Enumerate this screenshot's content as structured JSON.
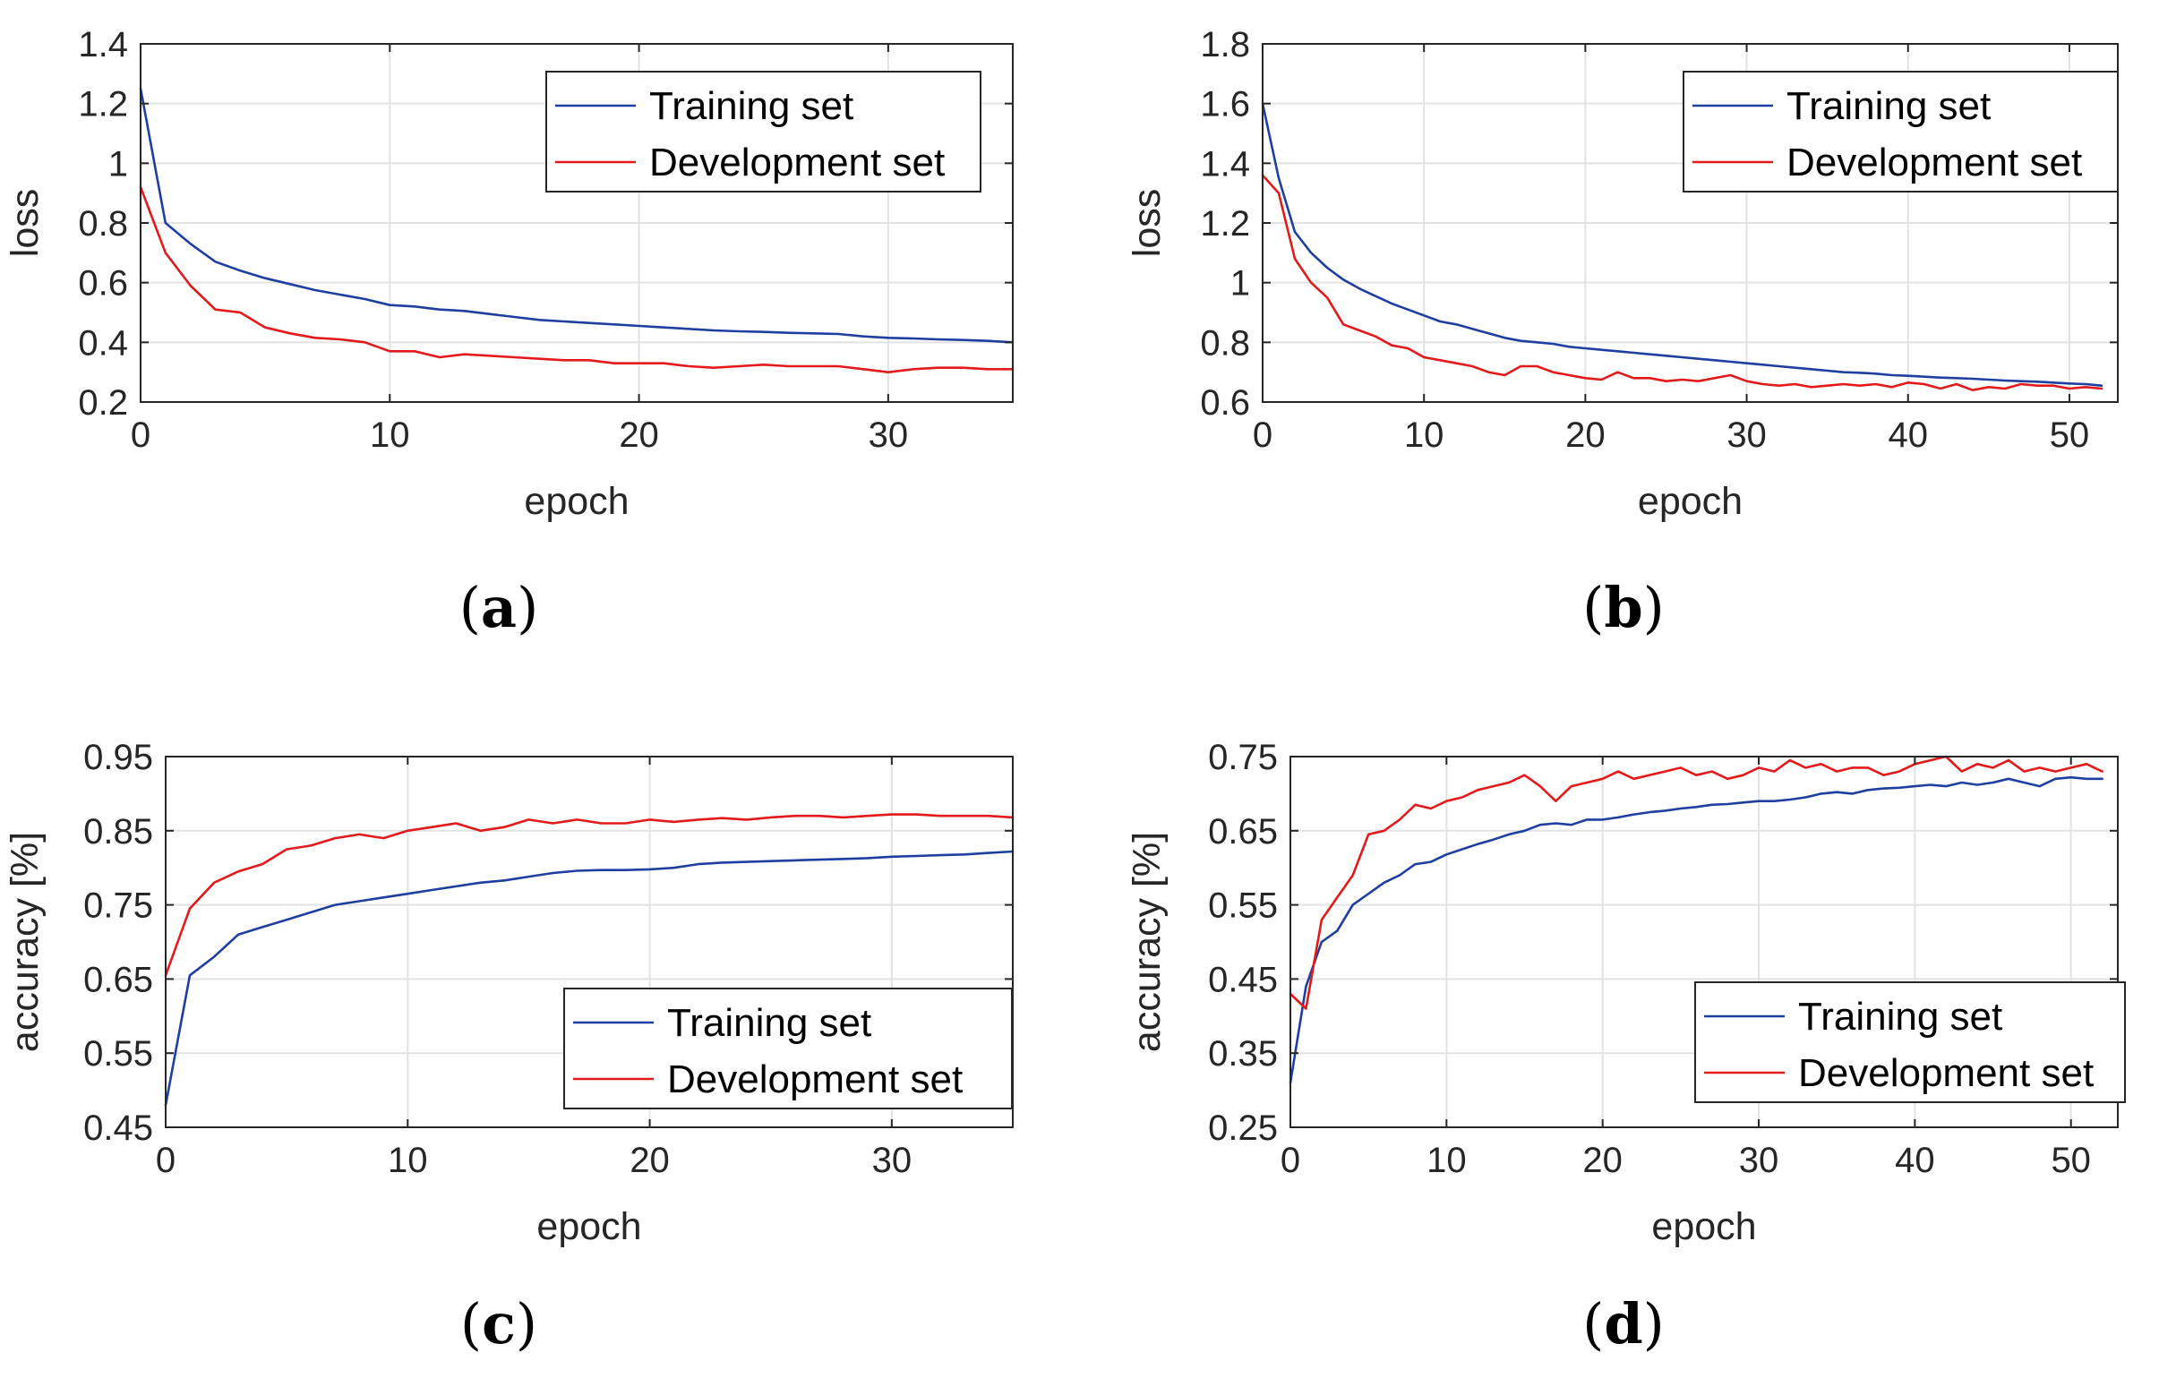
{
  "chart_data": [
    {
      "type": "line",
      "panel_label": "a",
      "xlabel": "epoch",
      "ylabel": "loss",
      "xlim": [
        0,
        35
      ],
      "ylim": [
        0.2,
        1.4
      ],
      "xticks": [
        "0",
        "10",
        "20",
        "30"
      ],
      "yticks": [
        "0.2",
        "0.4",
        "0.6",
        "0.8",
        "1",
        "1.2",
        "1.4"
      ],
      "grid": true,
      "legend_placement": "top-right",
      "series": [
        {
          "name": "Training set",
          "color": "#1f3fa0",
          "x": [
            0,
            1,
            2,
            3,
            4,
            5,
            6,
            7,
            8,
            9,
            10,
            11,
            12,
            13,
            14,
            15,
            16,
            17,
            18,
            19,
            20,
            21,
            22,
            23,
            24,
            25,
            26,
            27,
            28,
            29,
            30,
            31,
            32,
            33,
            34,
            35
          ],
          "values": [
            1.25,
            0.8,
            0.73,
            0.67,
            0.64,
            0.615,
            0.595,
            0.575,
            0.56,
            0.545,
            0.525,
            0.52,
            0.51,
            0.505,
            0.495,
            0.485,
            0.475,
            0.47,
            0.465,
            0.46,
            0.455,
            0.45,
            0.445,
            0.44,
            0.437,
            0.435,
            0.432,
            0.43,
            0.428,
            0.42,
            0.415,
            0.413,
            0.41,
            0.408,
            0.405,
            0.4
          ]
        },
        {
          "name": "Development set",
          "color": "#e31a1c",
          "x": [
            0,
            1,
            2,
            3,
            4,
            5,
            6,
            7,
            8,
            9,
            10,
            11,
            12,
            13,
            14,
            15,
            16,
            17,
            18,
            19,
            20,
            21,
            22,
            23,
            24,
            25,
            26,
            27,
            28,
            29,
            30,
            31,
            32,
            33,
            34,
            35
          ],
          "values": [
            0.92,
            0.7,
            0.59,
            0.51,
            0.5,
            0.45,
            0.43,
            0.415,
            0.41,
            0.4,
            0.37,
            0.37,
            0.35,
            0.36,
            0.355,
            0.35,
            0.345,
            0.34,
            0.34,
            0.33,
            0.33,
            0.33,
            0.32,
            0.315,
            0.32,
            0.325,
            0.32,
            0.32,
            0.32,
            0.31,
            0.3,
            0.31,
            0.315,
            0.315,
            0.31,
            0.31
          ]
        }
      ]
    },
    {
      "type": "line",
      "panel_label": "b",
      "xlabel": "epoch",
      "ylabel": "loss",
      "xlim": [
        0,
        53
      ],
      "ylim": [
        0.6,
        1.8
      ],
      "xticks": [
        "0",
        "10",
        "20",
        "30",
        "40",
        "50"
      ],
      "yticks": [
        "0.6",
        "0.8",
        "1",
        "1.2",
        "1.4",
        "1.6",
        "1.8"
      ],
      "grid": true,
      "legend_placement": "top-right",
      "series": [
        {
          "name": "Training set",
          "color": "#1f3fa0",
          "x": [
            0,
            1,
            2,
            3,
            4,
            5,
            6,
            7,
            8,
            9,
            10,
            11,
            12,
            13,
            14,
            15,
            16,
            17,
            18,
            19,
            20,
            21,
            22,
            23,
            24,
            25,
            26,
            27,
            28,
            29,
            30,
            31,
            32,
            33,
            34,
            35,
            36,
            37,
            38,
            39,
            40,
            41,
            42,
            43,
            44,
            45,
            46,
            47,
            48,
            49,
            50,
            51,
            52
          ],
          "values": [
            1.6,
            1.35,
            1.17,
            1.1,
            1.05,
            1.01,
            0.98,
            0.955,
            0.93,
            0.91,
            0.89,
            0.87,
            0.86,
            0.845,
            0.83,
            0.815,
            0.805,
            0.8,
            0.795,
            0.785,
            0.78,
            0.775,
            0.77,
            0.765,
            0.76,
            0.755,
            0.75,
            0.745,
            0.74,
            0.735,
            0.73,
            0.725,
            0.72,
            0.715,
            0.71,
            0.705,
            0.7,
            0.698,
            0.695,
            0.69,
            0.688,
            0.685,
            0.682,
            0.68,
            0.678,
            0.675,
            0.672,
            0.67,
            0.668,
            0.665,
            0.662,
            0.66,
            0.655
          ]
        },
        {
          "name": "Development set",
          "color": "#e31a1c",
          "x": [
            0,
            1,
            2,
            3,
            4,
            5,
            6,
            7,
            8,
            9,
            10,
            11,
            12,
            13,
            14,
            15,
            16,
            17,
            18,
            19,
            20,
            21,
            22,
            23,
            24,
            25,
            26,
            27,
            28,
            29,
            30,
            31,
            32,
            33,
            34,
            35,
            36,
            37,
            38,
            39,
            40,
            41,
            42,
            43,
            44,
            45,
            46,
            47,
            48,
            49,
            50,
            51,
            52
          ],
          "values": [
            1.36,
            1.3,
            1.08,
            1.0,
            0.95,
            0.86,
            0.84,
            0.82,
            0.79,
            0.78,
            0.75,
            0.74,
            0.73,
            0.72,
            0.7,
            0.69,
            0.72,
            0.72,
            0.7,
            0.69,
            0.68,
            0.675,
            0.7,
            0.68,
            0.68,
            0.67,
            0.675,
            0.67,
            0.68,
            0.69,
            0.67,
            0.66,
            0.655,
            0.66,
            0.65,
            0.655,
            0.66,
            0.655,
            0.66,
            0.65,
            0.665,
            0.66,
            0.645,
            0.66,
            0.64,
            0.65,
            0.645,
            0.66,
            0.655,
            0.655,
            0.645,
            0.65,
            0.645
          ]
        }
      ]
    },
    {
      "type": "line",
      "panel_label": "c",
      "xlabel": "epoch",
      "ylabel": "accuracy [%]",
      "xlim": [
        0,
        35
      ],
      "ylim": [
        0.45,
        0.95
      ],
      "xticks": [
        "0",
        "10",
        "20",
        "30"
      ],
      "yticks": [
        "0.45",
        "0.55",
        "0.65",
        "0.75",
        "0.85",
        "0.95"
      ],
      "grid": true,
      "legend_placement": "bottom-right",
      "series": [
        {
          "name": "Training set",
          "color": "#1f3fa0",
          "x": [
            0,
            1,
            2,
            3,
            4,
            5,
            6,
            7,
            8,
            9,
            10,
            11,
            12,
            13,
            14,
            15,
            16,
            17,
            18,
            19,
            20,
            21,
            22,
            23,
            24,
            25,
            26,
            27,
            28,
            29,
            30,
            31,
            32,
            33,
            34,
            35
          ],
          "values": [
            0.48,
            0.655,
            0.68,
            0.71,
            0.72,
            0.73,
            0.74,
            0.75,
            0.755,
            0.76,
            0.765,
            0.77,
            0.775,
            0.78,
            0.783,
            0.788,
            0.793,
            0.796,
            0.797,
            0.797,
            0.798,
            0.8,
            0.805,
            0.807,
            0.808,
            0.809,
            0.81,
            0.811,
            0.812,
            0.813,
            0.815,
            0.816,
            0.817,
            0.818,
            0.82,
            0.822
          ]
        },
        {
          "name": "Development set",
          "color": "#e31a1c",
          "x": [
            0,
            1,
            2,
            3,
            4,
            5,
            6,
            7,
            8,
            9,
            10,
            11,
            12,
            13,
            14,
            15,
            16,
            17,
            18,
            19,
            20,
            21,
            22,
            23,
            24,
            25,
            26,
            27,
            28,
            29,
            30,
            31,
            32,
            33,
            34,
            35
          ],
          "values": [
            0.655,
            0.745,
            0.78,
            0.795,
            0.805,
            0.825,
            0.83,
            0.84,
            0.845,
            0.84,
            0.85,
            0.855,
            0.86,
            0.85,
            0.855,
            0.865,
            0.86,
            0.865,
            0.86,
            0.86,
            0.865,
            0.862,
            0.865,
            0.867,
            0.865,
            0.868,
            0.87,
            0.87,
            0.868,
            0.87,
            0.872,
            0.872,
            0.87,
            0.87,
            0.87,
            0.868
          ]
        }
      ]
    },
    {
      "type": "line",
      "panel_label": "d",
      "xlabel": "epoch",
      "ylabel": "accuracy [%]",
      "xlim": [
        0,
        53
      ],
      "ylim": [
        0.25,
        0.75
      ],
      "xticks": [
        "0",
        "10",
        "20",
        "30",
        "40",
        "50"
      ],
      "yticks": [
        "0.25",
        "0.35",
        "0.45",
        "0.55",
        "0.65",
        "0.75"
      ],
      "grid": true,
      "legend_placement": "bottom-right",
      "series": [
        {
          "name": "Training set",
          "color": "#1f3fa0",
          "x": [
            0,
            1,
            2,
            3,
            4,
            5,
            6,
            7,
            8,
            9,
            10,
            11,
            12,
            13,
            14,
            15,
            16,
            17,
            18,
            19,
            20,
            21,
            22,
            23,
            24,
            25,
            26,
            27,
            28,
            29,
            30,
            31,
            32,
            33,
            34,
            35,
            36,
            37,
            38,
            39,
            40,
            41,
            42,
            43,
            44,
            45,
            46,
            47,
            48,
            49,
            50,
            51,
            52
          ],
          "values": [
            0.31,
            0.44,
            0.5,
            0.515,
            0.55,
            0.565,
            0.58,
            0.59,
            0.605,
            0.608,
            0.618,
            0.625,
            0.632,
            0.638,
            0.645,
            0.65,
            0.658,
            0.66,
            0.658,
            0.665,
            0.665,
            0.668,
            0.672,
            0.675,
            0.677,
            0.68,
            0.682,
            0.685,
            0.686,
            0.688,
            0.69,
            0.69,
            0.692,
            0.695,
            0.7,
            0.702,
            0.7,
            0.705,
            0.707,
            0.708,
            0.71,
            0.712,
            0.71,
            0.715,
            0.712,
            0.715,
            0.72,
            0.715,
            0.71,
            0.72,
            0.722,
            0.72,
            0.72
          ]
        },
        {
          "name": "Development set",
          "color": "#e31a1c",
          "x": [
            0,
            1,
            2,
            3,
            4,
            5,
            6,
            7,
            8,
            9,
            10,
            11,
            12,
            13,
            14,
            15,
            16,
            17,
            18,
            19,
            20,
            21,
            22,
            23,
            24,
            25,
            26,
            27,
            28,
            29,
            30,
            31,
            32,
            33,
            34,
            35,
            36,
            37,
            38,
            39,
            40,
            41,
            42,
            43,
            44,
            45,
            46,
            47,
            48,
            49,
            50,
            51,
            52
          ],
          "values": [
            0.43,
            0.41,
            0.53,
            0.56,
            0.59,
            0.645,
            0.65,
            0.665,
            0.685,
            0.68,
            0.69,
            0.695,
            0.705,
            0.71,
            0.715,
            0.725,
            0.71,
            0.69,
            0.71,
            0.715,
            0.72,
            0.73,
            0.72,
            0.725,
            0.73,
            0.735,
            0.725,
            0.73,
            0.72,
            0.725,
            0.735,
            0.73,
            0.745,
            0.735,
            0.74,
            0.73,
            0.735,
            0.735,
            0.725,
            0.73,
            0.74,
            0.745,
            0.75,
            0.73,
            0.74,
            0.735,
            0.745,
            0.73,
            0.735,
            0.73,
            0.735,
            0.74,
            0.73
          ]
        }
      ]
    }
  ]
}
